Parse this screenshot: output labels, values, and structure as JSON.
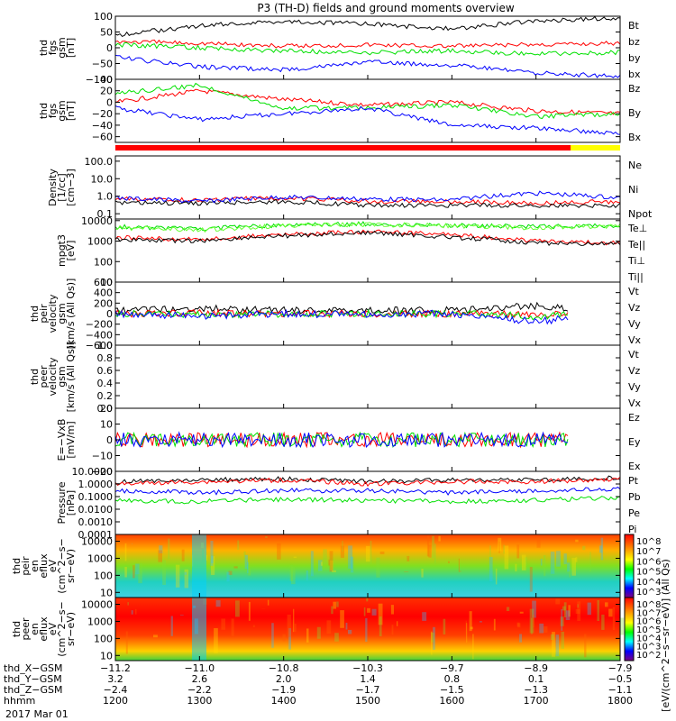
{
  "title": "P3 (TH-D) fields and ground moments overview",
  "date_label": "2017 Mar 01",
  "colors": {
    "black": "#000000",
    "red": "#ff0000",
    "green": "#00e000",
    "blue": "#0000ff",
    "lightgreen": "#66ff33",
    "yellow": "#ffff00"
  },
  "panels": [
    {
      "id": "fgs-gsm",
      "ylabel": [
        "thd",
        "fgs",
        "gsm",
        "[nT]"
      ],
      "yticks": [
        "100",
        "50",
        "0",
        "−50",
        "−100"
      ],
      "ylim": [
        -100,
        100
      ],
      "scale": "linear",
      "legend": [
        {
          "text": "Bt",
          "color": "black"
        },
        {
          "text": "bz",
          "color": "red"
        },
        {
          "text": "by",
          "color": "green"
        },
        {
          "text": "bx",
          "color": "blue"
        }
      ]
    },
    {
      "id": "fgs-dsl",
      "ylabel": [
        "thd",
        "fgs",
        "gsm",
        "[nT]"
      ],
      "yticks": [
        "40",
        "20",
        "0",
        "−20",
        "−40",
        "−60"
      ],
      "ylim": [
        -70,
        40
      ],
      "scale": "linear",
      "legend": [
        {
          "text": "Bz",
          "color": "red"
        },
        {
          "text": "By",
          "color": "green"
        },
        {
          "text": "Bx",
          "color": "blue"
        }
      ]
    },
    {
      "id": "density",
      "ylabel": [
        "Density",
        "[1/cc]",
        "[cm−3]"
      ],
      "yticks": [
        "100.0",
        "10.0",
        "1.0",
        "0.1"
      ],
      "ylim": [
        0.05,
        200
      ],
      "scale": "log",
      "legend": [
        {
          "text": "Ne",
          "color": "red"
        },
        {
          "text": "Ni",
          "color": "black"
        },
        {
          "text": "Npot",
          "color": "blue"
        }
      ]
    },
    {
      "id": "temperature",
      "ylabel": [
        "mpgt3",
        "[eV]"
      ],
      "yticks": [
        "10000",
        "1000",
        "100",
        "10"
      ],
      "ylim": [
        10,
        12000
      ],
      "scale": "log",
      "legend": [
        {
          "text": "Te⊥",
          "color": "red"
        },
        {
          "text": "Te||",
          "color": "black"
        },
        {
          "text": "Ti⊥",
          "color": "green"
        },
        {
          "text": "Ti||",
          "color": "lightgreen"
        }
      ]
    },
    {
      "id": "peir-velocity",
      "ylabel": [
        "thd",
        "peir",
        "velocity",
        "gsm",
        "[km/s (All Qs)]"
      ],
      "yticks": [
        "600",
        "400",
        "200",
        "0",
        "−200",
        "−400",
        "−600"
      ],
      "ylim": [
        -600,
        600
      ],
      "scale": "linear",
      "legend": [
        {
          "text": "Vt",
          "color": "black"
        },
        {
          "text": "Vz",
          "color": "red"
        },
        {
          "text": "Vy",
          "color": "green"
        },
        {
          "text": "Vx",
          "color": "blue"
        }
      ]
    },
    {
      "id": "peer-velocity",
      "ylabel": [
        "thd",
        "peer",
        "velocity",
        "gsm",
        "[km/s (All Qs)]"
      ],
      "yticks": [
        "1.0",
        "0.8",
        "0.6",
        "0.4",
        "0.2",
        "0.0"
      ],
      "ylim": [
        0,
        1
      ],
      "scale": "linear",
      "legend": [
        {
          "text": "Vt",
          "color": "black"
        },
        {
          "text": "Vz",
          "color": "red"
        },
        {
          "text": "Vy",
          "color": "green"
        },
        {
          "text": "Vx",
          "color": "blue"
        }
      ]
    },
    {
      "id": "efield",
      "ylabel": [
        "E=−VxB",
        "[mV/m]"
      ],
      "yticks": [
        "20",
        "10",
        "0",
        "−10",
        "−20"
      ],
      "ylim": [
        -20,
        20
      ],
      "scale": "linear",
      "legend": [
        {
          "text": "Ez",
          "color": "red"
        },
        {
          "text": "Ey",
          "color": "green"
        },
        {
          "text": "Ex",
          "color": "blue"
        }
      ]
    },
    {
      "id": "pressure",
      "ylabel": [
        "Pressure",
        "[nPa]"
      ],
      "yticks": [
        "10.0000",
        "1.0000",
        "0.1000",
        "0.0100",
        "0.0010",
        "0.0001"
      ],
      "ylim": [
        0.0001,
        10
      ],
      "scale": "log",
      "legend": [
        {
          "text": "Pt",
          "color": "black"
        },
        {
          "text": "Pb",
          "color": "red"
        },
        {
          "text": "Pe",
          "color": "green"
        },
        {
          "text": "Pi",
          "color": "blue"
        }
      ]
    },
    {
      "id": "peir-spectrogram",
      "ylabel": [
        "thd",
        "peir",
        "en",
        "eflux",
        "eV",
        "(cm^2−s−",
        "sr−eV)"
      ],
      "yticks": [
        "10000",
        "1000",
        "100",
        "10"
      ],
      "ylim": [
        5,
        25000
      ],
      "scale": "log",
      "legend": []
    },
    {
      "id": "peer-spectrogram",
      "ylabel": [
        "thd",
        "peer",
        "en",
        "eflux",
        "eV",
        "(cm^2−s−",
        "sr−eV)"
      ],
      "yticks": [
        "10000",
        "1000",
        "100",
        "10"
      ],
      "ylim": [
        5,
        25000
      ],
      "scale": "log",
      "legend": []
    }
  ],
  "colorbars": [
    {
      "ticks": [
        "10^8",
        "10^7",
        "10^6",
        "10^5",
        "10^4",
        "10^3"
      ]
    },
    {
      "ticks": [
        "10^8",
        "10^7",
        "10^6",
        "10^5",
        "10^4",
        "10^3",
        "10^2"
      ]
    }
  ],
  "colorbar_label": "[eV/(cm^2−s−sr−eV)] (All Qs)",
  "x_axis": {
    "rows": [
      {
        "label": "thd_X−GSM",
        "values": [
          "−11.2",
          "−11.0",
          "−10.8",
          "−10.3",
          "−9.7",
          "−8.9",
          "−7.9"
        ]
      },
      {
        "label": "thd_Y−GSM",
        "values": [
          "3.2",
          "2.6",
          "2.0",
          "1.4",
          "0.8",
          "0.1",
          "−0.5"
        ]
      },
      {
        "label": "thd_Z−GSM",
        "values": [
          "−2.4",
          "−2.2",
          "−1.9",
          "−1.7",
          "−1.5",
          "−1.3",
          "−1.1"
        ]
      },
      {
        "label": "hhmm",
        "values": [
          "1200",
          "1300",
          "1400",
          "1500",
          "1600",
          "1700",
          "1800"
        ]
      }
    ]
  },
  "chart_data": {
    "type": "line",
    "title": "P3 (TH-D) fields and ground moments overview",
    "x": [
      "1200",
      "1300",
      "1400",
      "1500",
      "1600",
      "1700",
      "1800"
    ],
    "xlabel": "hhmm",
    "panels": [
      {
        "ylabel": "thd fgs gsm [nT]",
        "ylim": [
          -100,
          100
        ],
        "series": [
          {
            "name": "Bt",
            "color": "#000000",
            "values": [
              40,
              70,
              85,
              75,
              60,
              85,
              95
            ]
          },
          {
            "name": "bz",
            "color": "#ff0000",
            "values": [
              20,
              15,
              5,
              10,
              5,
              10,
              15
            ]
          },
          {
            "name": "by",
            "color": "#00e000",
            "values": [
              10,
              0,
              -10,
              -15,
              -10,
              -20,
              -15
            ]
          },
          {
            "name": "bx",
            "color": "#0000ff",
            "values": [
              -30,
              -60,
              -70,
              -45,
              -55,
              -80,
              -90
            ]
          }
        ]
      },
      {
        "ylabel": "thd fgs gsm [nT]",
        "ylim": [
          -70,
          40
        ],
        "series": [
          {
            "name": "Bz",
            "color": "#ff0000",
            "values": [
              0,
              20,
              5,
              -5,
              0,
              -15,
              -20
            ]
          },
          {
            "name": "By",
            "color": "#00e000",
            "values": [
              15,
              30,
              -10,
              -10,
              -5,
              -25,
              -20
            ]
          },
          {
            "name": "Bx",
            "color": "#0000ff",
            "values": [
              -10,
              -30,
              -20,
              -10,
              -40,
              -45,
              -55
            ]
          }
        ]
      },
      {
        "ylabel": "Density [1/cc] [cm−3]",
        "scale": "log",
        "ylim": [
          0.05,
          200
        ],
        "series": [
          {
            "name": "Ne",
            "color": "#ff0000",
            "values": [
              0.7,
              0.6,
              0.8,
              0.5,
              0.5,
              0.4,
              0.5
            ]
          },
          {
            "name": "Ni",
            "color": "#000000",
            "values": [
              0.4,
              0.4,
              0.5,
              0.3,
              0.3,
              0.3,
              0.3
            ]
          },
          {
            "name": "Npot",
            "color": "#0000ff",
            "values": [
              0.8,
              0.5,
              0.9,
              0.7,
              0.6,
              1.5,
              0.8
            ]
          }
        ]
      },
      {
        "ylabel": "mpgt3 [eV]",
        "scale": "log",
        "ylim": [
          10,
          12000
        ],
        "series": [
          {
            "name": "Te⊥",
            "color": "#ff0000",
            "values": [
              1500,
              1200,
              2000,
              3000,
              2000,
              1000,
              800
            ]
          },
          {
            "name": "Te||",
            "color": "#000000",
            "values": [
              1200,
              1000,
              1800,
              2500,
              1500,
              800,
              700
            ]
          },
          {
            "name": "Ti⊥",
            "color": "#00e000",
            "values": [
              5000,
              4000,
              6000,
              7000,
              6000,
              5000,
              6000
            ]
          },
          {
            "name": "Ti||",
            "color": "#66ff33",
            "values": [
              4500,
              3500,
              5500,
              6500,
              5500,
              4500,
              5500
            ]
          }
        ]
      },
      {
        "ylabel": "thd peir velocity gsm [km/s (All Qs)]",
        "ylim": [
          -600,
          600
        ],
        "series": [
          {
            "name": "Vt",
            "color": "#000000",
            "values": [
              60,
              100,
              60,
              60,
              60,
              150,
              60
            ]
          },
          {
            "name": "Vz",
            "color": "#ff0000",
            "values": [
              0,
              10,
              0,
              0,
              0,
              -20,
              0
            ]
          },
          {
            "name": "Vy",
            "color": "#00e000",
            "values": [
              0,
              -20,
              0,
              0,
              0,
              -50,
              0
            ]
          },
          {
            "name": "Vx",
            "color": "#0000ff",
            "values": [
              0,
              -40,
              0,
              -20,
              0,
              -150,
              0
            ]
          }
        ]
      },
      {
        "ylabel": "thd peer velocity gsm [km/s (All Qs)]",
        "ylim": [
          0,
          1
        ],
        "series": []
      },
      {
        "ylabel": "E=−VxB [mV/m]",
        "ylim": [
          -20,
          20
        ],
        "series": [
          {
            "name": "Ez",
            "color": "#ff0000",
            "values": [
              0,
              0,
              0,
              0,
              0,
              0,
              0
            ]
          },
          {
            "name": "Ey",
            "color": "#00e000",
            "values": [
              0,
              0,
              0,
              0,
              0,
              0,
              0
            ]
          },
          {
            "name": "Ex",
            "color": "#0000ff",
            "values": [
              0,
              0,
              0,
              0,
              0,
              0,
              0
            ]
          }
        ]
      },
      {
        "ylabel": "Pressure [nPa]",
        "scale": "log",
        "ylim": [
          0.0001,
          10
        ],
        "series": [
          {
            "name": "Pt",
            "color": "#000000",
            "values": [
              1.5,
              2,
              2.5,
              1.5,
              2,
              2,
              3
            ]
          },
          {
            "name": "Pb",
            "color": "#ff0000",
            "values": [
              1,
              1.5,
              2,
              1,
              1.5,
              1.5,
              2.5
            ]
          },
          {
            "name": "Pe",
            "color": "#00e000",
            "values": [
              0.05,
              0.04,
              0.06,
              0.05,
              0.04,
              0.05,
              0.08
            ]
          },
          {
            "name": "Pi",
            "color": "#0000ff",
            "values": [
              0.3,
              0.2,
              0.3,
              0.3,
              0.2,
              0.3,
              0.4
            ]
          }
        ]
      }
    ]
  }
}
